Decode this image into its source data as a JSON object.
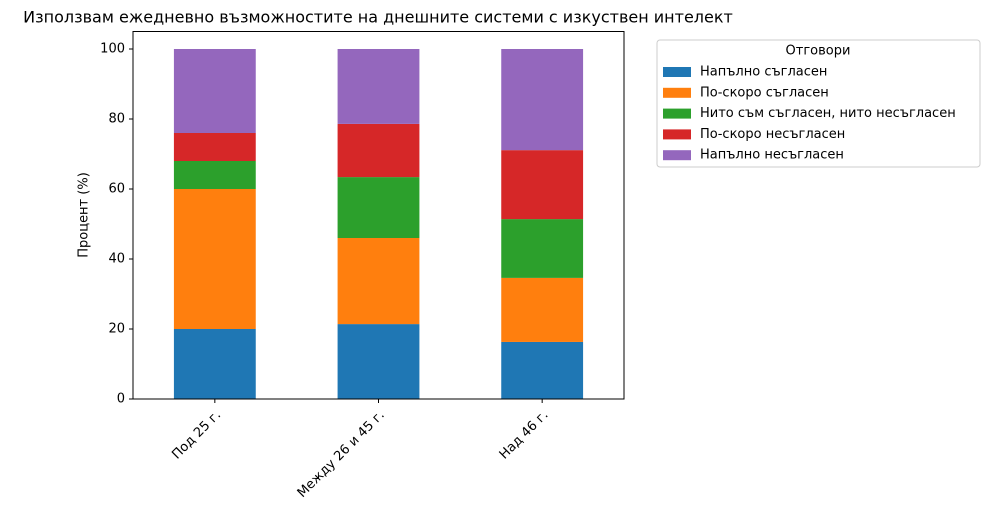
{
  "chart_data": {
    "type": "stacked_bar",
    "title": "Използвам ежедневно възможностите на днешните системи с изкуствен интелект",
    "y_label": "Процент (%)",
    "categories": [
      "Под 25 г.",
      "Между 26 и 45 г.",
      "Над 46 г."
    ],
    "legend_title": "Отговори",
    "legend_position": "outside-right",
    "series": [
      {
        "name": "Напълно съгласен",
        "color": "#1f77b4",
        "values": [
          20,
          21.4,
          16.3
        ]
      },
      {
        "name": "По-скоро съгласен",
        "color": "#ff7f0e",
        "values": [
          40,
          24.6,
          18.3
        ]
      },
      {
        "name": "Нито съм съгласен, нито несъгласен",
        "color": "#2ca02c",
        "values": [
          8,
          17.4,
          16.8
        ]
      },
      {
        "name": "По-скоро несъгласен",
        "color": "#d62728",
        "values": [
          8,
          15.2,
          19.7
        ]
      },
      {
        "name": "Напълно несъгласен",
        "color": "#9467bd",
        "values": [
          24,
          21.4,
          28.9
        ]
      }
    ],
    "ylim": [
      0,
      105
    ],
    "yticks": [
      0,
      20,
      40,
      60,
      80,
      100
    ]
  }
}
